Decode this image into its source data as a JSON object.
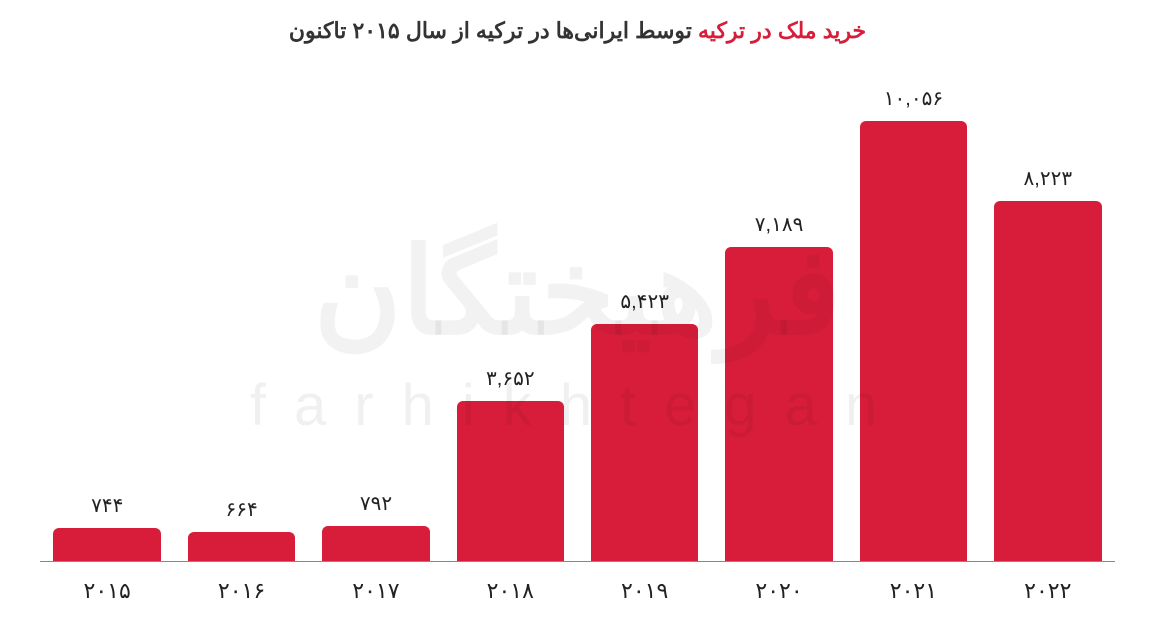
{
  "chart": {
    "type": "bar",
    "title_plain_prefix": "خرید ملک در ترکیه",
    "title_rest": " توسط ایرانی‌ها در ترکیه از سال ۲۰۱۵ تاکنون",
    "title_fontsize": 22,
    "title_color": "#333333",
    "title_highlight_color": "#d81d3b",
    "background_color": "#ffffff",
    "axis_line_color": "#888888",
    "bar_color": "#d81d3b",
    "bar_width_pct": 80,
    "bar_radius": 6,
    "value_label_color": "#222222",
    "value_label_fontsize": 20,
    "x_label_color": "#222222",
    "x_label_fontsize": 22,
    "ylim": [
      0,
      11000
    ],
    "categories_fa": [
      "۲۰۱۵",
      "۲۰۱۶",
      "۲۰۱۷",
      "۲۰۱۸",
      "۲۰۱۹",
      "۲۰۲۰",
      "۲۰۲۱",
      "۲۰۲۲"
    ],
    "values_numeric": [
      744,
      664,
      792,
      3652,
      5423,
      7189,
      10056,
      8223
    ],
    "values_fa": [
      "۷۴۴",
      "۶۶۴",
      "۷۹۲",
      "۳,۶۵۲",
      "۵,۴۲۳",
      "۷,۱۸۹",
      "۱۰,۰۵۶",
      "۸,۲۲۳"
    ]
  },
  "watermark": {
    "fa_text": "فرهیختگان",
    "en_text": "farhikhtegan",
    "fa_color": "rgba(0,0,0,0.05)",
    "en_color": "rgba(0,0,0,0.06)",
    "fa_fontsize": 120,
    "en_fontsize": 58
  }
}
